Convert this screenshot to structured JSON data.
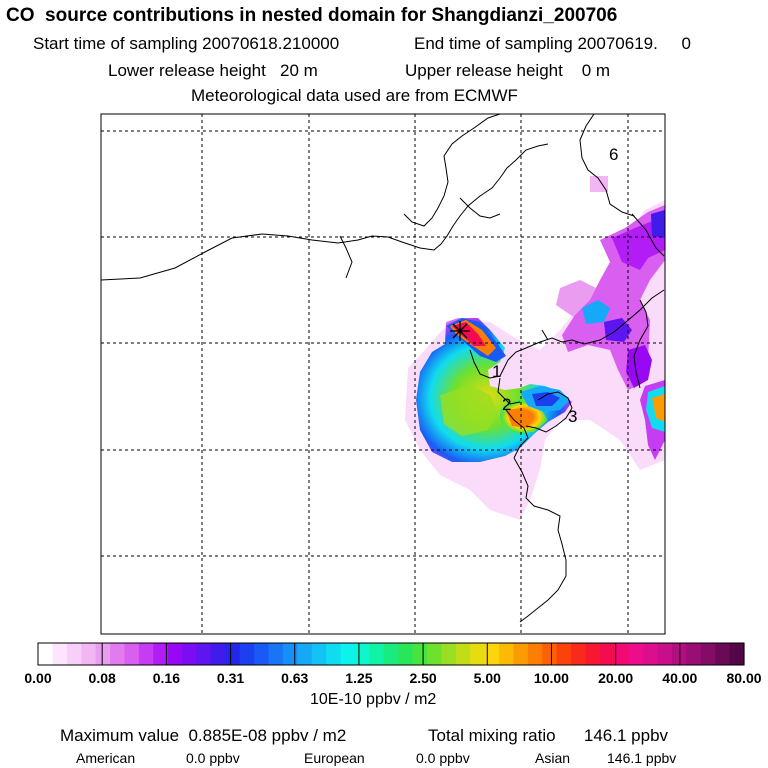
{
  "header": {
    "title": "CO  source contributions in nested domain for Shangdianzi_200706",
    "start_sampling": "Start time of sampling 20070618.210000",
    "end_sampling": "End time of sampling 20070619.     0",
    "lower_release": "Lower release height   20 m",
    "upper_release": "Upper release height    0 m",
    "met_data": "Meteorological data used are from ECMWF"
  },
  "map": {
    "markers": [
      {
        "label": "1"
      },
      {
        "label": "2"
      },
      {
        "label": "3"
      },
      {
        "label": "6"
      }
    ],
    "receptor_symbol": "star"
  },
  "colorbar": {
    "tick_labels": [
      "0.00",
      "0.08",
      "0.16",
      "0.31",
      "0.63",
      "1.25",
      "2.50",
      "5.00",
      "10.00",
      "20.00",
      "40.00",
      "80.00"
    ],
    "colors": [
      "#ffffff",
      "#fde6fd",
      "#f8cff8",
      "#f3b6f4",
      "#ea9cf0",
      "#e27cee",
      "#d85ff0",
      "#c63cf3",
      "#b21cf5",
      "#9908f5",
      "#7a0df3",
      "#5d16ef",
      "#3f1ceb",
      "#2426ea",
      "#1c3ff0",
      "#1a5af4",
      "#1876f6",
      "#1690f8",
      "#16a9f8",
      "#14c3f6",
      "#10dbf0",
      "#0df3ec",
      "#0cf8cc",
      "#10f2a6",
      "#1aeb7e",
      "#28e658",
      "#48e33c",
      "#6ee02e",
      "#98de22",
      "#c2dc18",
      "#e6dc10",
      "#fcd60a",
      "#fcba06",
      "#fc9c04",
      "#fc7e04",
      "#fc6004",
      "#fb420a",
      "#f72a1c",
      "#f51830",
      "#f40c50",
      "#f20a74",
      "#ec0c8c",
      "#dc0e8e",
      "#c80e8a",
      "#b20e80",
      "#9a0e74",
      "#820c66",
      "#6a0a56",
      "#520846"
    ],
    "unit_label": "10E-10 ppbv / m2"
  },
  "summary": {
    "max_value": "Maximum value  0.885E-08 ppbv / m2",
    "total_mixing": "Total mixing ratio      146.1 ppbv",
    "regions": [
      {
        "name": "American",
        "value": "0.0 ppbv"
      },
      {
        "name": "European",
        "value": "0.0 ppbv"
      },
      {
        "name": "Asian",
        "value": "146.1 ppbv"
      }
    ]
  }
}
